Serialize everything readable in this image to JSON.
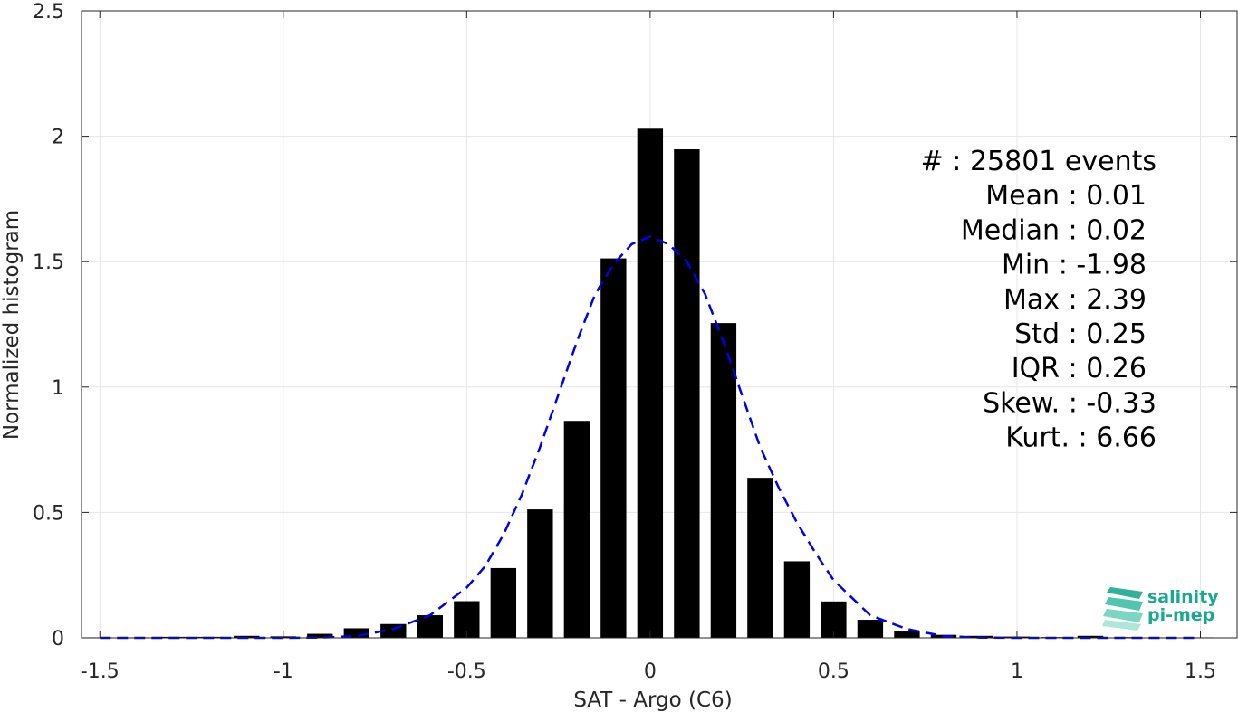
{
  "chart_data": {
    "type": "bar",
    "xlabel": "SAT - Argo (C6)",
    "ylabel": "Normalized histogram",
    "xlim": [
      -1.55,
      1.6
    ],
    "ylim": [
      0,
      2.5
    ],
    "xticks": [
      -1.5,
      -1,
      -0.5,
      0,
      0.5,
      1,
      1.5
    ],
    "xtick_labels": [
      "-1.5",
      "-1",
      "-0.5",
      "0",
      "0.5",
      "1",
      "1.5"
    ],
    "yticks": [
      0,
      0.5,
      1,
      1.5,
      2,
      2.5
    ],
    "ytick_labels": [
      "0",
      "0.5",
      "1",
      "1.5",
      "2",
      "2.5"
    ],
    "grid": true,
    "bar_color": "#000000",
    "bar_width": 0.07,
    "x": [
      -1.5,
      -1.4,
      -1.3,
      -1.2,
      -1.1,
      -1.0,
      -0.9,
      -0.8,
      -0.7,
      -0.6,
      -0.5,
      -0.4,
      -0.3,
      -0.2,
      -0.1,
      0.0,
      0.1,
      0.2,
      0.3,
      0.4,
      0.5,
      0.6,
      0.7,
      0.8,
      0.9,
      1.0,
      1.1,
      1.2,
      1.3,
      1.4,
      1.5
    ],
    "values": [
      0.002,
      0.002,
      0.004,
      0.004,
      0.008,
      0.006,
      0.016,
      0.038,
      0.055,
      0.09,
      0.146,
      0.278,
      0.512,
      0.865,
      1.513,
      2.03,
      1.948,
      1.255,
      0.638,
      0.305,
      0.145,
      0.072,
      0.028,
      0.012,
      0.008,
      0.005,
      0.003,
      0.008,
      0.003,
      0.002,
      0.002
    ],
    "fit": {
      "name": "gaussian fit",
      "color": "#0000ee",
      "style": "dashed",
      "x": [
        -1.5,
        -1.4,
        -1.3,
        -1.2,
        -1.1,
        -1.0,
        -0.9,
        -0.8,
        -0.7,
        -0.6,
        -0.5,
        -0.45,
        -0.4,
        -0.35,
        -0.3,
        -0.25,
        -0.2,
        -0.15,
        -0.1,
        -0.05,
        0.0,
        0.05,
        0.1,
        0.15,
        0.2,
        0.25,
        0.3,
        0.35,
        0.4,
        0.45,
        0.5,
        0.6,
        0.7,
        0.8,
        0.9,
        1.0,
        1.1,
        1.2,
        1.3,
        1.4,
        1.5
      ],
      "y": [
        0.0,
        0.0,
        0.0,
        0.0,
        0.0,
        0.0,
        0.001,
        0.007,
        0.035,
        0.09,
        0.2,
        0.285,
        0.41,
        0.57,
        0.76,
        0.97,
        1.18,
        1.37,
        1.49,
        1.57,
        1.6,
        1.57,
        1.5,
        1.37,
        1.18,
        0.97,
        0.76,
        0.6,
        0.46,
        0.34,
        0.23,
        0.09,
        0.035,
        0.007,
        0.001,
        0.0,
        0.0,
        0.0,
        0.0,
        0.0,
        0.0
      ]
    }
  },
  "stats": [
    {
      "text": "#  : 25801 events",
      "anchor": "end",
      "right": 1277
    },
    {
      "text": "Mean : 0.01",
      "anchor": "end",
      "right": 1266
    },
    {
      "text": "Median : 0.02",
      "anchor": "end",
      "right": 1266
    },
    {
      "text": "Min : -1.98",
      "anchor": "end",
      "right": 1266
    },
    {
      "text": "Max : 2.39",
      "anchor": "end",
      "right": 1266
    },
    {
      "text": "Std : 0.25",
      "anchor": "end",
      "right": 1266
    },
    {
      "text": "IQR : 0.26",
      "anchor": "end",
      "right": 1266
    },
    {
      "text": "Skew. : -0.33",
      "anchor": "end",
      "right": 1277
    },
    {
      "text": "Kurt. : 6.66",
      "anchor": "end",
      "right": 1277
    }
  ],
  "logo": {
    "line1": "salinity",
    "line2": "pi-mep",
    "color": "#1aa98f"
  }
}
